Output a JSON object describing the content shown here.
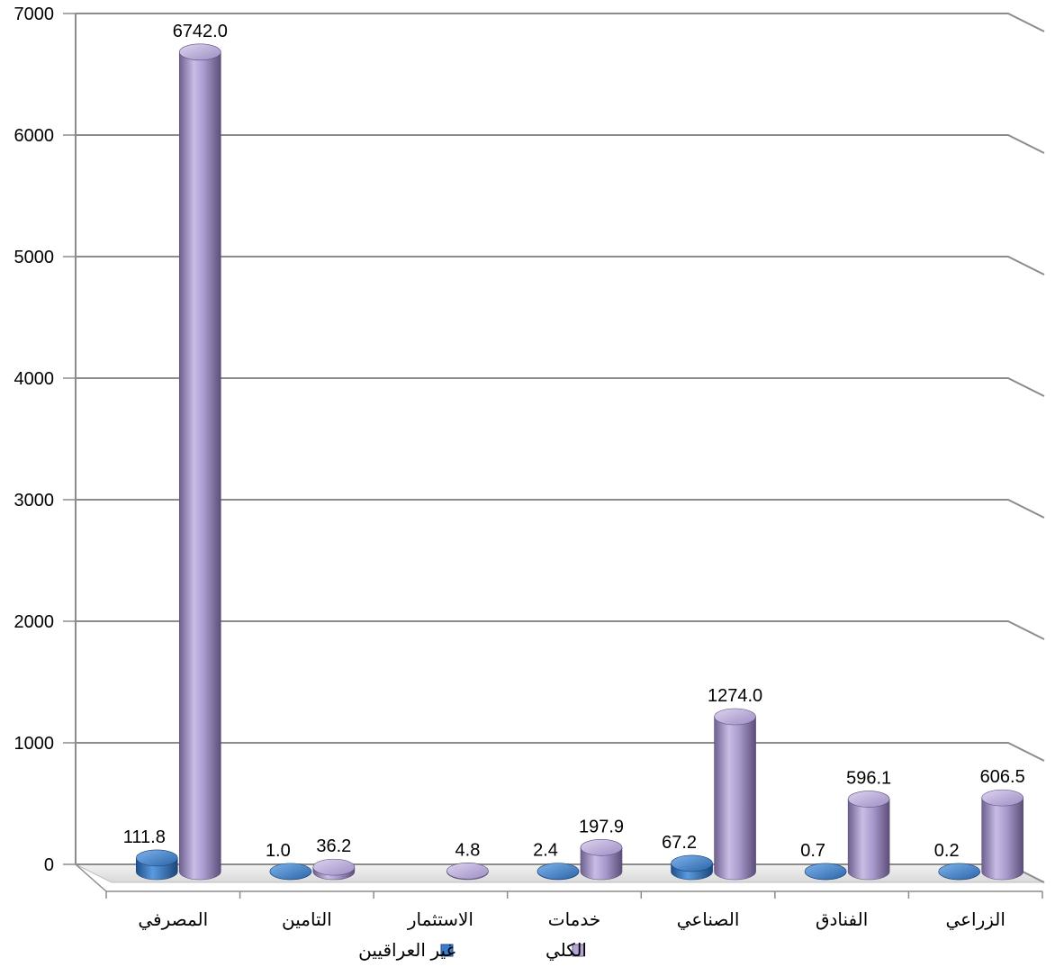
{
  "chart_data": {
    "type": "bar",
    "style": "3d-cylinder",
    "categories": [
      "المصرفي",
      "التامين",
      "الاستثمار",
      "خدمات",
      "الصناعي",
      "الفنادق",
      "الزراعي"
    ],
    "series": [
      {
        "name": "غير العراقيين",
        "color": "#3d7cc9",
        "values": [
          111.8,
          1.0,
          null,
          2.4,
          67.2,
          0.7,
          0.2
        ],
        "labels": [
          "111.8",
          "1.0",
          "",
          "2.4",
          "67.2",
          "0.7",
          "0.2"
        ]
      },
      {
        "name": "الكلي",
        "color": "#b5a6d6",
        "values": [
          6742.0,
          36.2,
          4.8,
          197.9,
          1274.0,
          596.1,
          606.5
        ],
        "labels": [
          "6742.0",
          "36.2",
          "4.8",
          "197.9",
          "1274.0",
          "596.1",
          "606.5"
        ]
      }
    ],
    "y_ticks": [
      "0",
      "1000",
      "2000",
      "3000",
      "4000",
      "5000",
      "6000",
      "7000"
    ],
    "ylim": [
      0,
      7000
    ],
    "grid": true,
    "legend_position": "bottom",
    "title": "",
    "xlabel": "",
    "ylabel": ""
  }
}
